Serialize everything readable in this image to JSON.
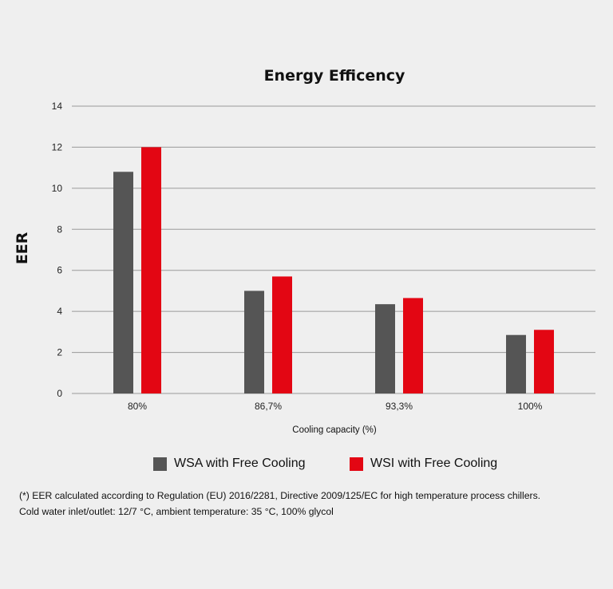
{
  "chart_data": {
    "type": "bar",
    "title": "Energy Efficency",
    "xlabel": "Cooling capacity (%)",
    "ylabel": "EER",
    "categories": [
      "80%",
      "86,7%",
      "93,3%",
      "100%"
    ],
    "ylim": [
      0,
      14
    ],
    "yticks": [
      "0",
      "2",
      "4",
      "6",
      "8",
      "10",
      "12",
      "14"
    ],
    "grid": true,
    "legend_position": "bottom",
    "series": [
      {
        "name": "WSA with Free Cooling",
        "color": "#555555",
        "values": [
          10.8,
          5.0,
          4.35,
          2.85
        ]
      },
      {
        "name": "WSI with Free Cooling",
        "color": "#e30613",
        "values": [
          12.0,
          5.7,
          4.65,
          3.1
        ]
      }
    ]
  },
  "footnote": {
    "line1": "(*) EER calculated according to Regulation (EU) 2016/2281, Directive 2009/125/EC for high temperature process chillers.",
    "line2": "Cold water inlet/outlet: 12/7 °C, ambient temperature: 35 °C, 100% glycol"
  },
  "colors": {
    "background": "#efefef",
    "grid": "#9a9a9a",
    "text": "#111111"
  }
}
